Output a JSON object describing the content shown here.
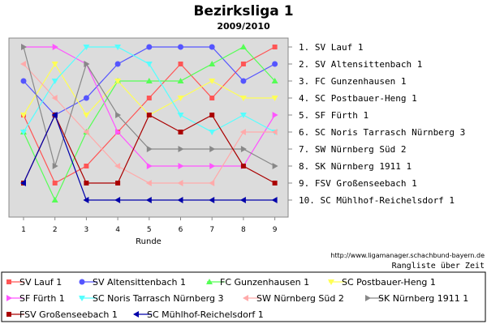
{
  "chart_data": {
    "type": "line",
    "title": "Bezirksliga 1",
    "subtitle": "2009/2010",
    "xlabel": "Runde",
    "ylabel": "",
    "x": [
      1,
      2,
      3,
      4,
      5,
      6,
      7,
      8,
      9
    ],
    "ylim": [
      1,
      10
    ],
    "y_inverted": true,
    "grid": false,
    "right_labels": [
      "1.  SV Lauf 1",
      "2.  SV Altensittenbach 1",
      "3.  FC Gunzenhausen 1",
      "4.  SC Postbauer-Heng 1",
      "5.  SF Fürth 1",
      "6.  SC Noris Tarrasch Nürnberg 3",
      "7.  SW Nürnberg Süd 2",
      "8.  SK Nürnberg 1911 1",
      "9.  FSV Großenseebach 1",
      "10. SC Mühlhof-Reichelsdorf 1"
    ],
    "series": [
      {
        "name": "SV Lauf 1",
        "color": "#ff5555",
        "marker": "square",
        "values": [
          5,
          9,
          8,
          6,
          4,
          2,
          4,
          2,
          1
        ]
      },
      {
        "name": "SV Altensittenbach 1",
        "color": "#5555ff",
        "marker": "circle",
        "values": [
          3,
          5,
          4,
          2,
          1,
          1,
          1,
          3,
          2
        ]
      },
      {
        "name": "FC Gunzenhausen 1",
        "color": "#55ff55",
        "marker": "triangle-up",
        "values": [
          6,
          10,
          6,
          3,
          3,
          3,
          2,
          1,
          3
        ]
      },
      {
        "name": "SC Postbauer-Heng 1",
        "color": "#ffff55",
        "marker": "triangle-down",
        "values": [
          5,
          2,
          5,
          3,
          5,
          4,
          3,
          4,
          4
        ]
      },
      {
        "name": "SF Fürth 1",
        "color": "#ff55ff",
        "marker": "triangle-right",
        "values": [
          1,
          1,
          2,
          6,
          8,
          8,
          8,
          8,
          5
        ]
      },
      {
        "name": "SC Noris Tarrasch Nürnberg 3",
        "color": "#55ffff",
        "marker": "triangle-down",
        "values": [
          6,
          3,
          1,
          1,
          2,
          5,
          6,
          5,
          6
        ]
      },
      {
        "name": "SW Nürnberg Süd 2",
        "color": "#ffaaaa",
        "marker": "triangle-left",
        "values": [
          2,
          4,
          6,
          8,
          9,
          9,
          9,
          6,
          6
        ]
      },
      {
        "name": "SK Nürnberg 1911 1",
        "color": "#888888",
        "marker": "triangle-right",
        "values": [
          1,
          8,
          2,
          5,
          7,
          7,
          7,
          7,
          8
        ]
      },
      {
        "name": "FSV Großenseebach 1",
        "color": "#aa0000",
        "marker": "square",
        "values": [
          9,
          5,
          9,
          9,
          5,
          6,
          5,
          8,
          9
        ]
      },
      {
        "name": "SC Mühlhof-Reichelsdorf 1",
        "color": "#0000aa",
        "marker": "triangle-left",
        "values": [
          9,
          5,
          10,
          10,
          10,
          10,
          10,
          10,
          10
        ]
      }
    ],
    "footer_url": "http://www.ligamanager.schachbund-bayern.de",
    "footer_caption": "Rangliste über Zeit",
    "legend_position": "bottom"
  }
}
